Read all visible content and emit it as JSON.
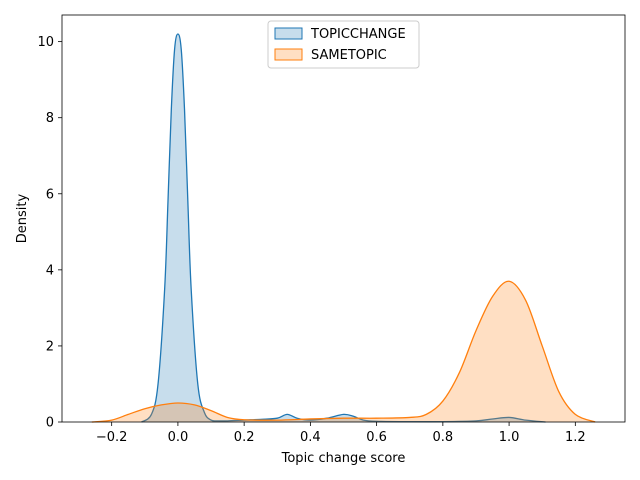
{
  "chart_data": {
    "type": "area",
    "title": "",
    "xlabel": "Topic change score",
    "ylabel": "Density",
    "xlim": [
      -0.35,
      1.35
    ],
    "ylim": [
      0,
      10.7
    ],
    "x_ticks": [
      -0.2,
      0.0,
      0.2,
      0.4,
      0.6,
      0.8,
      1.0,
      1.2
    ],
    "x_tick_labels": [
      "−0.2",
      "0.0",
      "0.2",
      "0.4",
      "0.6",
      "0.8",
      "1.0",
      "1.2"
    ],
    "y_ticks": [
      0,
      2,
      4,
      6,
      8,
      10
    ],
    "y_tick_labels": [
      "0",
      "2",
      "4",
      "6",
      "8",
      "10"
    ],
    "grid": false,
    "legend_position": "top-center",
    "series": [
      {
        "name": "TOPICCHANGE",
        "color": "#1f77b4",
        "fill": "#c6dbef",
        "x": [
          -0.11,
          -0.08,
          -0.06,
          -0.04,
          -0.03,
          -0.02,
          -0.01,
          0.0,
          0.01,
          0.02,
          0.03,
          0.04,
          0.06,
          0.08,
          0.1,
          0.12,
          0.15,
          0.2,
          0.25,
          0.3,
          0.33,
          0.36,
          0.4,
          0.45,
          0.5,
          0.53,
          0.56,
          0.6,
          0.7,
          0.8,
          0.9,
          0.95,
          1.0,
          1.05,
          1.11
        ],
        "y": [
          0.0,
          0.2,
          1.0,
          3.5,
          5.8,
          8.2,
          9.8,
          10.2,
          9.8,
          8.2,
          5.8,
          3.5,
          1.0,
          0.25,
          0.05,
          0.03,
          0.03,
          0.05,
          0.07,
          0.1,
          0.2,
          0.1,
          0.05,
          0.1,
          0.2,
          0.15,
          0.05,
          0.02,
          0.01,
          0.01,
          0.03,
          0.08,
          0.12,
          0.05,
          0.0
        ]
      },
      {
        "name": "SAMETOPIC",
        "color": "#ff7f0e",
        "fill": "#fdd9b5",
        "x": [
          -0.26,
          -0.2,
          -0.15,
          -0.1,
          -0.05,
          0.0,
          0.05,
          0.1,
          0.15,
          0.2,
          0.3,
          0.4,
          0.5,
          0.6,
          0.7,
          0.75,
          0.8,
          0.85,
          0.9,
          0.95,
          1.0,
          1.05,
          1.1,
          1.15,
          1.2,
          1.26
        ],
        "y": [
          0.0,
          0.05,
          0.2,
          0.35,
          0.45,
          0.5,
          0.45,
          0.3,
          0.12,
          0.06,
          0.05,
          0.08,
          0.1,
          0.1,
          0.12,
          0.2,
          0.55,
          1.3,
          2.4,
          3.3,
          3.7,
          3.2,
          2.0,
          0.8,
          0.2,
          0.0
        ]
      }
    ]
  }
}
